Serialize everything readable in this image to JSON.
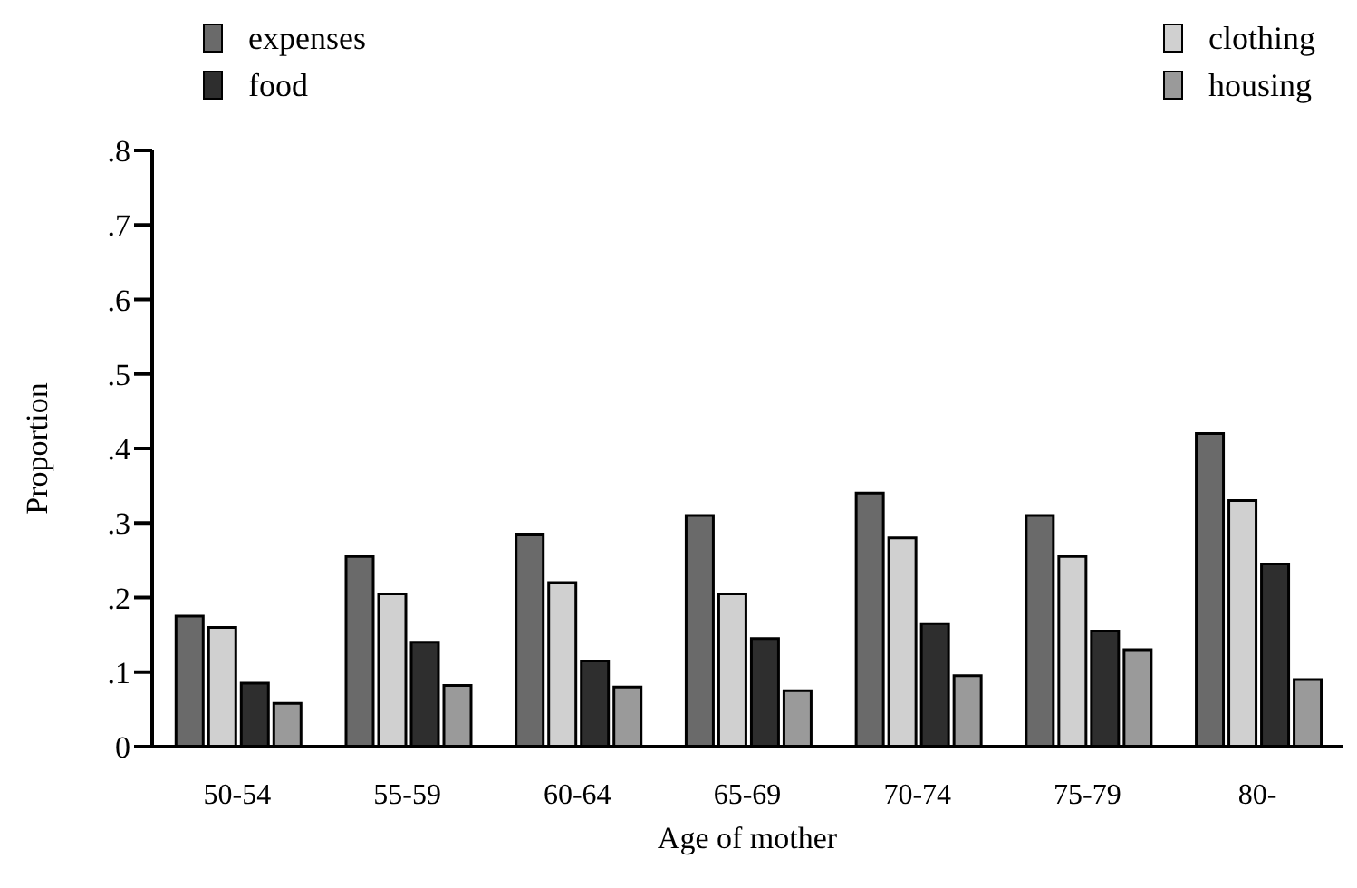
{
  "chart_data": {
    "type": "bar",
    "xlabel": "Age of mother",
    "ylabel": "Proportion",
    "categories": [
      "50-54",
      "55-59",
      "60-64",
      "65-69",
      "70-74",
      "75-79",
      "80-"
    ],
    "series": [
      {
        "name": "expenses",
        "color": "#6a6a6a",
        "values": [
          0.175,
          0.255,
          0.285,
          0.31,
          0.34,
          0.31,
          0.42
        ]
      },
      {
        "name": "clothing",
        "color": "#d0d0d0",
        "values": [
          0.16,
          0.205,
          0.22,
          0.205,
          0.28,
          0.255,
          0.33
        ]
      },
      {
        "name": "food",
        "color": "#2e2e2e",
        "values": [
          0.085,
          0.14,
          0.115,
          0.145,
          0.165,
          0.155,
          0.245
        ]
      },
      {
        "name": "housing",
        "color": "#9a9a9a",
        "values": [
          0.058,
          0.082,
          0.08,
          0.075,
          0.095,
          0.13,
          0.09
        ]
      }
    ],
    "ylim": [
      0,
      0.8
    ],
    "yticks": [
      0,
      {
        "value": 0.1,
        "label": ".1"
      },
      {
        "value": 0.2,
        "label": ".2"
      },
      {
        "value": 0.3,
        "label": ".3"
      },
      {
        "value": 0.4,
        "label": ".4"
      },
      {
        "value": 0.5,
        "label": ".5"
      },
      {
        "value": 0.6,
        "label": ".6"
      },
      {
        "value": 0.7,
        "label": ".7"
      },
      {
        "value": 0.8,
        "label": ".8"
      }
    ],
    "legend": "top left",
    "grid": false
  }
}
